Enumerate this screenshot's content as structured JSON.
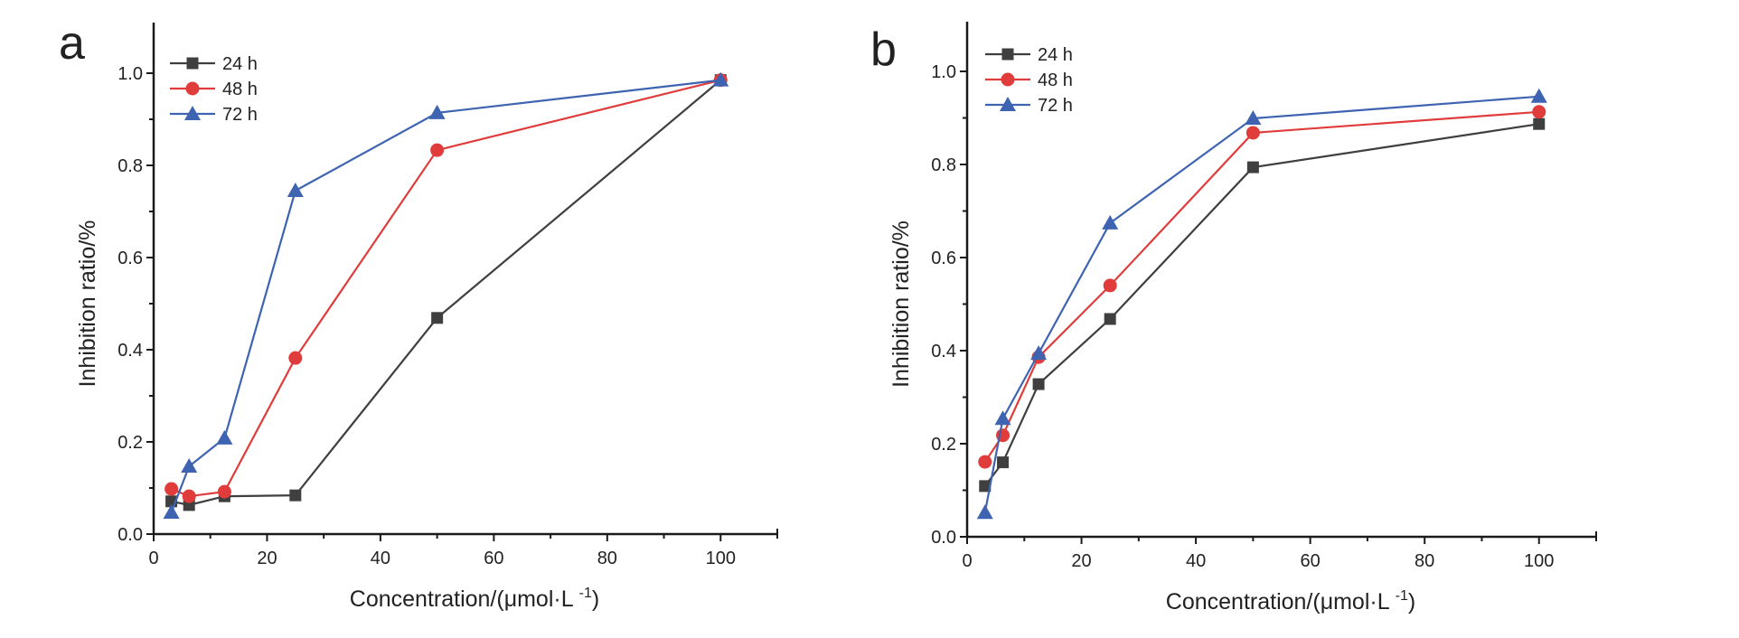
{
  "chart_data": [
    {
      "panel": "a",
      "type": "line",
      "title": "",
      "xlabel": "Concentration/(μmol·L",
      "xlabel_superscript": "-1",
      "xlabel_suffix": ")",
      "ylabel": "Inhibition ratio/%",
      "xlim": [
        0,
        110
      ],
      "ylim": [
        0,
        1.1
      ],
      "xticks": [
        0,
        20,
        40,
        60,
        80,
        100
      ],
      "yticks": [
        0.0,
        0.2,
        0.4,
        0.6,
        0.8,
        1.0
      ],
      "xtick_labels": [
        "0",
        "20",
        "40",
        "60",
        "80",
        "100"
      ],
      "ytick_labels": [
        "0.0",
        "0.2",
        "0.4",
        "0.6",
        "0.8",
        "1.0"
      ],
      "grid": false,
      "legend": "top-left",
      "x": [
        3.125,
        6.25,
        12.5,
        25,
        50,
        100
      ],
      "series": [
        {
          "name": "24 h",
          "marker": "square",
          "color": "#3f3f3f",
          "values": [
            0.071,
            0.063,
            0.082,
            0.084,
            0.469,
            0.985
          ]
        },
        {
          "name": "48 h",
          "marker": "circle",
          "color": "#e03c3c",
          "values": [
            0.098,
            0.082,
            0.092,
            0.382,
            0.833,
            0.985
          ]
        },
        {
          "name": "72 h",
          "marker": "triangle",
          "color": "#3e63b0",
          "values": [
            0.047,
            0.147,
            0.208,
            0.745,
            0.914,
            0.985
          ]
        }
      ]
    },
    {
      "panel": "b",
      "type": "line",
      "title": "",
      "xlabel": "Concentration/(μmol·L",
      "xlabel_superscript": "-1",
      "xlabel_suffix": ")",
      "ylabel": "Inhibition ratio/%",
      "xlim": [
        0,
        110
      ],
      "ylim": [
        0,
        1.1
      ],
      "xticks": [
        0,
        20,
        40,
        60,
        80,
        100
      ],
      "yticks": [
        0.0,
        0.2,
        0.4,
        0.6,
        0.8,
        1.0
      ],
      "xtick_labels": [
        "0",
        "20",
        "40",
        "60",
        "80",
        "100"
      ],
      "ytick_labels": [
        "0.0",
        "0.2",
        "0.4",
        "0.6",
        "0.8",
        "1.0"
      ],
      "grid": false,
      "legend": "top-left",
      "x": [
        3.125,
        6.25,
        12.5,
        25,
        50,
        100
      ],
      "series": [
        {
          "name": "24 h",
          "marker": "square",
          "color": "#3f3f3f",
          "values": [
            0.109,
            0.16,
            0.328,
            0.468,
            0.794,
            0.887
          ]
        },
        {
          "name": "48 h",
          "marker": "circle",
          "color": "#e03c3c",
          "values": [
            0.161,
            0.218,
            0.386,
            0.54,
            0.868,
            0.913
          ]
        },
        {
          "name": "72 h",
          "marker": "triangle",
          "color": "#3e63b0",
          "values": [
            0.052,
            0.254,
            0.394,
            0.674,
            0.899,
            0.946
          ]
        }
      ]
    }
  ]
}
